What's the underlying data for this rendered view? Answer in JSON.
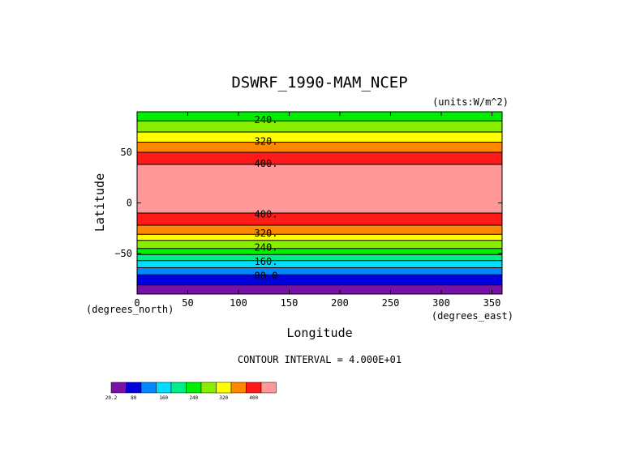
{
  "chart_data": {
    "type": "heatmap",
    "title": "DSWRF_1990-MAM_NCEP",
    "units_label": "(units:W/m^2)",
    "xlabel": "Longitude",
    "ylabel": "Latitude",
    "x_unit_label": "(degrees_east)",
    "y_unit_label": "(degrees_north)",
    "xlim": [
      0,
      360
    ],
    "ylim": [
      -90,
      90
    ],
    "x_ticks": [
      0,
      50,
      100,
      150,
      200,
      250,
      300,
      350
    ],
    "y_ticks": [
      50,
      0,
      -50
    ],
    "y_tick_labels": [
      "50",
      "0",
      "−50"
    ],
    "contour_interval_label": "CONTOUR INTERVAL = 4.000E+01",
    "contour_labels": [
      {
        "text": "240.",
        "lat": 82
      },
      {
        "text": "320.",
        "lat": 61
      },
      {
        "text": "400.",
        "lat": 39
      },
      {
        "text": "400.",
        "lat": -11
      },
      {
        "text": "320.",
        "lat": -30
      },
      {
        "text": "240.",
        "lat": -44
      },
      {
        "text": "160.",
        "lat": -58
      },
      {
        "text": "80.0",
        "lat": -72
      }
    ],
    "bands": [
      {
        "lat_from": 90,
        "lat_to": 81,
        "color": "#00ee00"
      },
      {
        "lat_from": 81,
        "lat_to": 70,
        "color": "#88ee00"
      },
      {
        "lat_from": 70,
        "lat_to": 60,
        "color": "#ffff00"
      },
      {
        "lat_from": 60,
        "lat_to": 50,
        "color": "#ff8800"
      },
      {
        "lat_from": 50,
        "lat_to": 38,
        "color": "#ff1a1a"
      },
      {
        "lat_from": 38,
        "lat_to": -10,
        "color": "#ff9999"
      },
      {
        "lat_from": -10,
        "lat_to": -22,
        "color": "#ff1a1a"
      },
      {
        "lat_from": -22,
        "lat_to": -31,
        "color": "#ff8800"
      },
      {
        "lat_from": -31,
        "lat_to": -37,
        "color": "#ffff00"
      },
      {
        "lat_from": -37,
        "lat_to": -45,
        "color": "#88ee00"
      },
      {
        "lat_from": -45,
        "lat_to": -51,
        "color": "#00ee00"
      },
      {
        "lat_from": -51,
        "lat_to": -57,
        "color": "#00ee88"
      },
      {
        "lat_from": -57,
        "lat_to": -64,
        "color": "#00ddff"
      },
      {
        "lat_from": -64,
        "lat_to": -71,
        "color": "#0088ff"
      },
      {
        "lat_from": -71,
        "lat_to": -81,
        "color": "#0000dd"
      },
      {
        "lat_from": -81,
        "lat_to": -90,
        "color": "#7711aa"
      }
    ],
    "colorbar": {
      "colors": [
        "#7711aa",
        "#0000dd",
        "#0088ff",
        "#00ddff",
        "#00ee88",
        "#00ee00",
        "#88ee00",
        "#ffff00",
        "#ff8800",
        "#ff1a1a",
        "#ff9999"
      ],
      "labels": [
        {
          "text": "20.2",
          "at": 0
        },
        {
          "text": "80",
          "at": 1.5
        },
        {
          "text": "160",
          "at": 3.5
        },
        {
          "text": "240",
          "at": 5.5
        },
        {
          "text": "320",
          "at": 7.5
        },
        {
          "text": "400",
          "at": 9.5
        }
      ]
    }
  }
}
